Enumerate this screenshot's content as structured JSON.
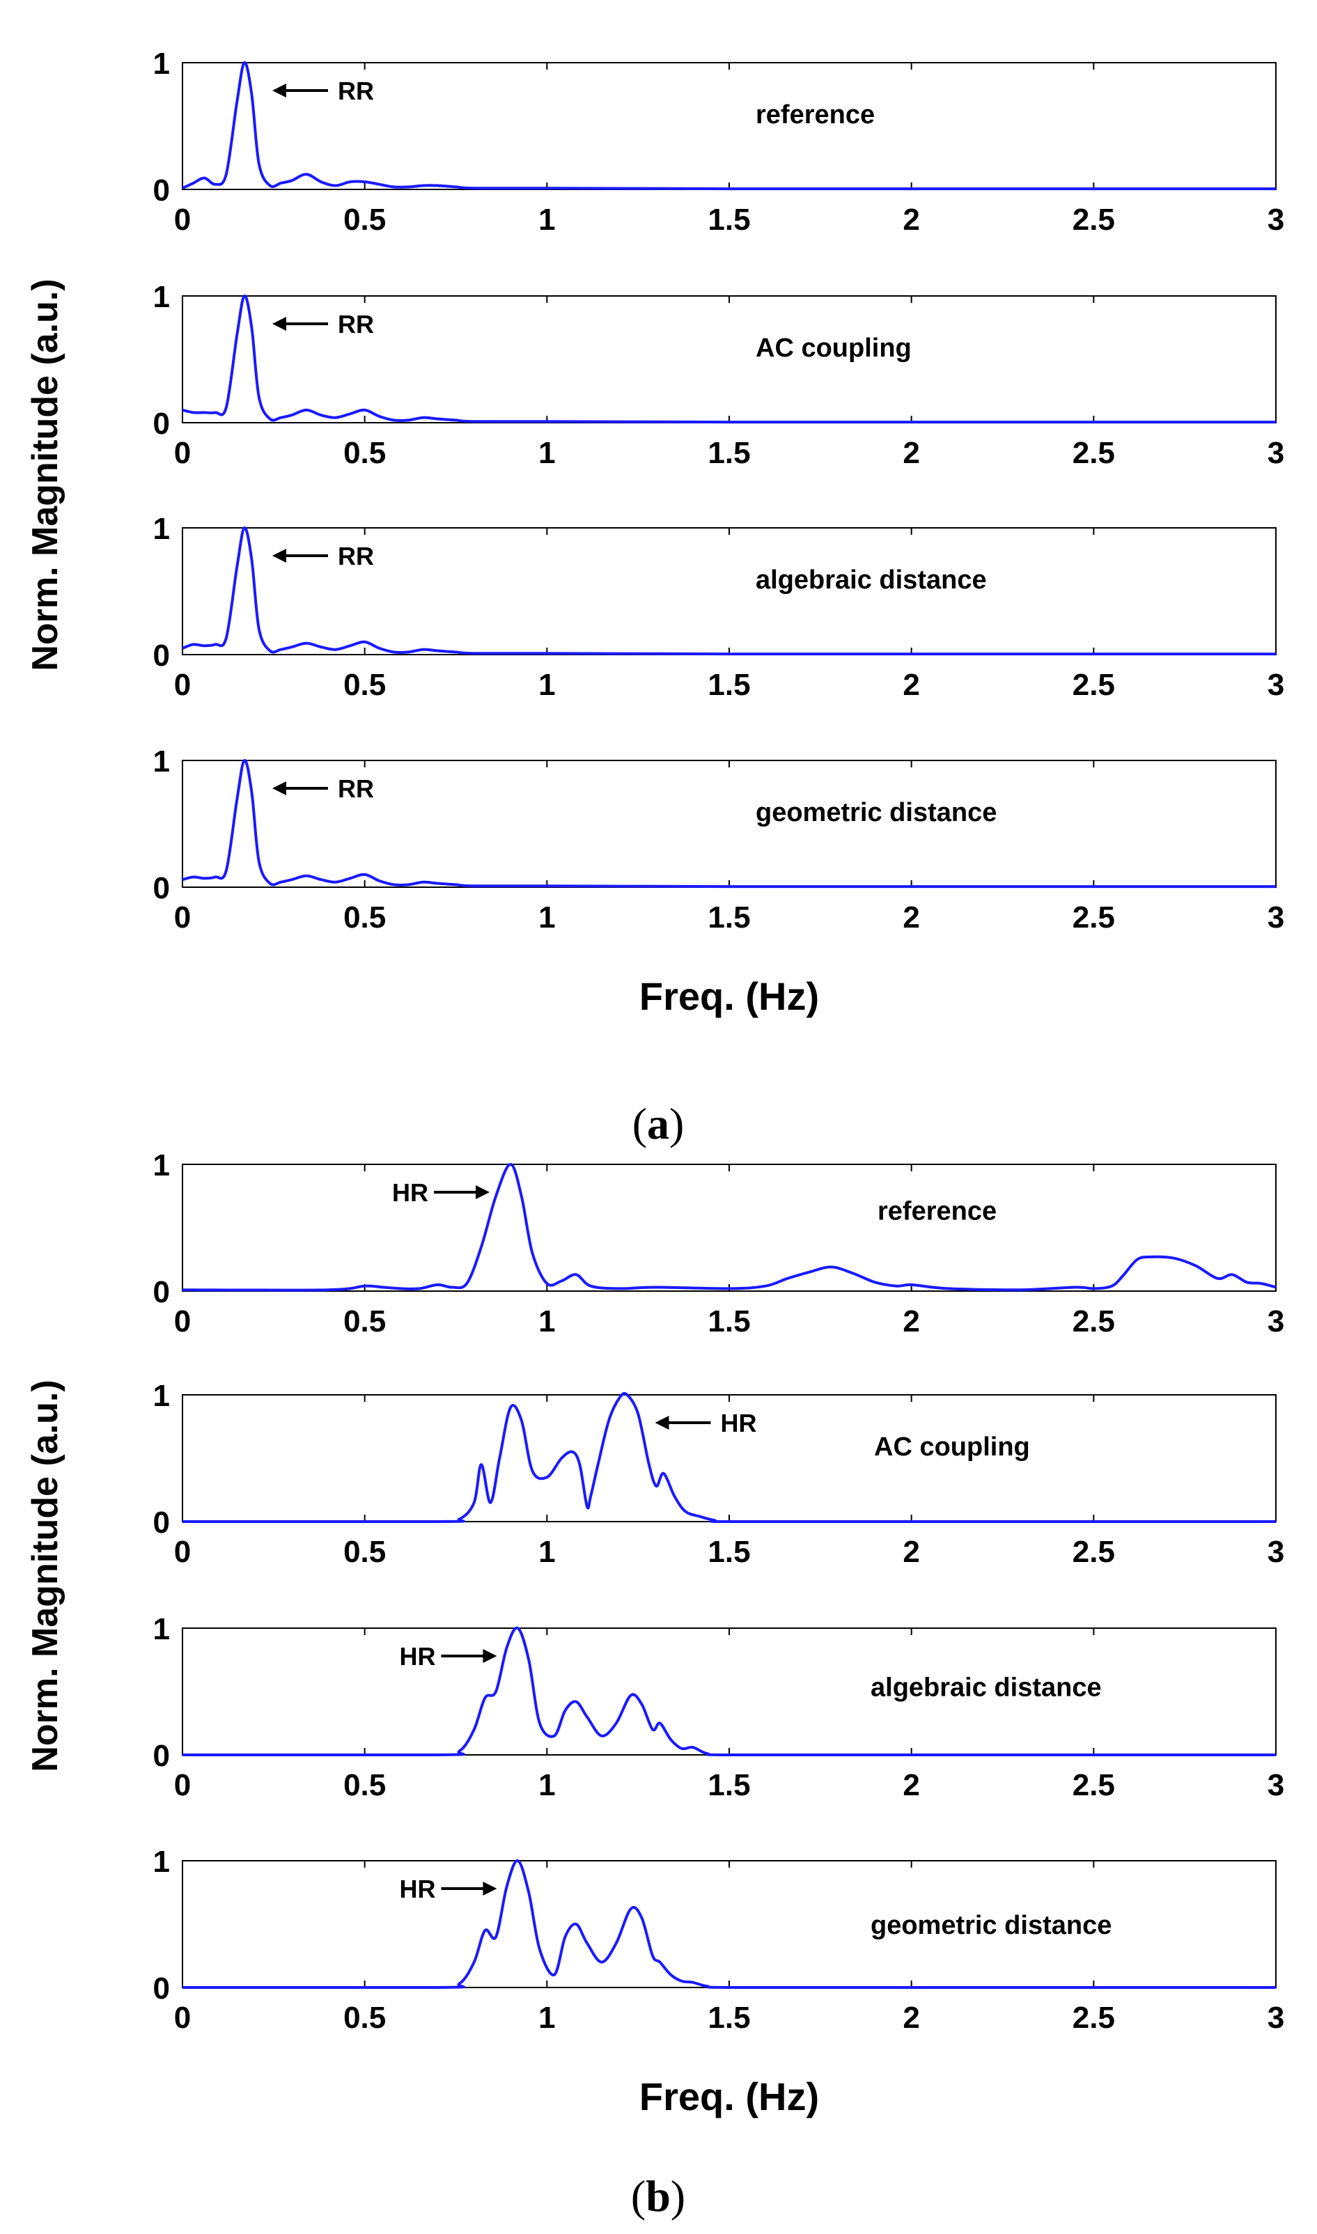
{
  "caption_a": {
    "open": "(",
    "letter": "a",
    "close": ")"
  },
  "caption_b": {
    "open": "(",
    "letter": "b",
    "close": ")"
  },
  "chart_data": [
    {
      "type": "line",
      "figure": "a",
      "ylabel": "Norm. Magnitude (a.u.)",
      "xlabel": "Freq. (Hz)",
      "xlim": [
        0,
        3
      ],
      "ylim": [
        0,
        1
      ],
      "xticks": [
        "0",
        "0.5",
        "1",
        "1.5",
        "2",
        "2.5",
        "3"
      ],
      "yticks": [
        "0",
        "1"
      ],
      "line_color": "#1a1aff",
      "panels": [
        {
          "label": "reference",
          "annotation": {
            "text": "RR",
            "direction": "left",
            "target_x": 0.17
          },
          "x": [
            0,
            0.03,
            0.06,
            0.09,
            0.12,
            0.15,
            0.17,
            0.19,
            0.21,
            0.24,
            0.27,
            0.3,
            0.34,
            0.38,
            0.42,
            0.46,
            0.5,
            0.54,
            0.58,
            0.62,
            0.66,
            0.7,
            0.75,
            0.8,
            1.0,
            1.5,
            2.0,
            2.5,
            3.0
          ],
          "y": [
            0.01,
            0.05,
            0.09,
            0.04,
            0.12,
            0.7,
            1.0,
            0.75,
            0.2,
            0.03,
            0.05,
            0.07,
            0.12,
            0.06,
            0.03,
            0.06,
            0.06,
            0.04,
            0.02,
            0.02,
            0.03,
            0.03,
            0.02,
            0.01,
            0.01,
            0.005,
            0.005,
            0.005,
            0.005
          ]
        },
        {
          "label": "AC coupling",
          "annotation": {
            "text": "RR",
            "direction": "left",
            "target_x": 0.17
          },
          "x": [
            0,
            0.03,
            0.06,
            0.09,
            0.12,
            0.15,
            0.17,
            0.19,
            0.21,
            0.24,
            0.27,
            0.3,
            0.34,
            0.38,
            0.42,
            0.46,
            0.5,
            0.54,
            0.58,
            0.62,
            0.66,
            0.7,
            0.75,
            0.8,
            1.0,
            1.5,
            2.0,
            2.5,
            3.0
          ],
          "y": [
            0.1,
            0.08,
            0.08,
            0.08,
            0.12,
            0.7,
            1.0,
            0.75,
            0.2,
            0.03,
            0.04,
            0.06,
            0.1,
            0.06,
            0.04,
            0.07,
            0.1,
            0.05,
            0.02,
            0.02,
            0.04,
            0.03,
            0.02,
            0.01,
            0.01,
            0.005,
            0.005,
            0.005,
            0.005
          ]
        },
        {
          "label": "algebraic distance",
          "annotation": {
            "text": "RR",
            "direction": "left",
            "target_x": 0.17
          },
          "x": [
            0,
            0.03,
            0.06,
            0.09,
            0.12,
            0.15,
            0.17,
            0.19,
            0.21,
            0.24,
            0.27,
            0.3,
            0.34,
            0.38,
            0.42,
            0.46,
            0.5,
            0.54,
            0.58,
            0.62,
            0.66,
            0.7,
            0.75,
            0.8,
            1.0,
            1.5,
            2.0,
            2.5,
            3.0
          ],
          "y": [
            0.05,
            0.08,
            0.07,
            0.08,
            0.13,
            0.7,
            1.0,
            0.75,
            0.2,
            0.03,
            0.04,
            0.06,
            0.09,
            0.06,
            0.04,
            0.07,
            0.1,
            0.05,
            0.02,
            0.02,
            0.04,
            0.03,
            0.02,
            0.01,
            0.01,
            0.005,
            0.005,
            0.005,
            0.005
          ]
        },
        {
          "label": "geometric distance",
          "annotation": {
            "text": "RR",
            "direction": "left",
            "target_x": 0.17
          },
          "x": [
            0,
            0.03,
            0.06,
            0.09,
            0.12,
            0.15,
            0.17,
            0.19,
            0.21,
            0.24,
            0.27,
            0.3,
            0.34,
            0.38,
            0.42,
            0.46,
            0.5,
            0.54,
            0.58,
            0.62,
            0.66,
            0.7,
            0.75,
            0.8,
            1.0,
            1.5,
            2.0,
            2.5,
            3.0
          ],
          "y": [
            0.06,
            0.08,
            0.07,
            0.08,
            0.13,
            0.7,
            1.0,
            0.75,
            0.2,
            0.03,
            0.04,
            0.06,
            0.09,
            0.06,
            0.04,
            0.07,
            0.1,
            0.05,
            0.02,
            0.02,
            0.04,
            0.03,
            0.02,
            0.01,
            0.01,
            0.005,
            0.005,
            0.005,
            0.005
          ]
        }
      ]
    },
    {
      "type": "line",
      "figure": "b",
      "ylabel": "Norm. Magnitude (a.u.)",
      "xlabel": "Freq. (Hz)",
      "xlim": [
        0,
        3
      ],
      "ylim": [
        0,
        1
      ],
      "xticks": [
        "0",
        "0.5",
        "1",
        "1.5",
        "2",
        "2.5",
        "3"
      ],
      "yticks": [
        "0",
        "1"
      ],
      "line_color": "#1a1aff",
      "panels": [
        {
          "label": "reference",
          "annotation": {
            "text": "HR",
            "direction": "right",
            "target_x": 0.9
          },
          "x": [
            0,
            0.4,
            0.5,
            0.55,
            0.6,
            0.65,
            0.7,
            0.74,
            0.78,
            0.82,
            0.86,
            0.9,
            0.93,
            0.96,
            1.0,
            1.04,
            1.08,
            1.12,
            1.2,
            1.3,
            1.5,
            1.6,
            1.66,
            1.72,
            1.78,
            1.84,
            1.9,
            1.96,
            2.0,
            2.1,
            2.3,
            2.45,
            2.5,
            2.55,
            2.58,
            2.62,
            2.66,
            2.72,
            2.78,
            2.84,
            2.88,
            2.92,
            2.96,
            3.0
          ],
          "y": [
            0.01,
            0.01,
            0.04,
            0.03,
            0.02,
            0.02,
            0.05,
            0.03,
            0.06,
            0.35,
            0.75,
            1.0,
            0.75,
            0.3,
            0.06,
            0.08,
            0.13,
            0.04,
            0.02,
            0.03,
            0.02,
            0.04,
            0.1,
            0.15,
            0.19,
            0.14,
            0.07,
            0.04,
            0.05,
            0.02,
            0.01,
            0.03,
            0.02,
            0.04,
            0.12,
            0.25,
            0.27,
            0.26,
            0.2,
            0.1,
            0.13,
            0.07,
            0.06,
            0.03
          ]
        },
        {
          "label": "AC coupling",
          "annotation": {
            "text": "HR",
            "direction": "left",
            "target_x": 1.22
          },
          "x": [
            0,
            0.7,
            0.76,
            0.8,
            0.82,
            0.845,
            0.87,
            0.9,
            0.93,
            0.96,
            1.0,
            1.04,
            1.07,
            1.09,
            1.11,
            1.12,
            1.14,
            1.17,
            1.2,
            1.22,
            1.25,
            1.28,
            1.3,
            1.32,
            1.35,
            1.38,
            1.42,
            1.46,
            1.5,
            2.0,
            3.0
          ],
          "y": [
            0.0,
            0.0,
            0.02,
            0.15,
            0.45,
            0.15,
            0.5,
            0.9,
            0.8,
            0.4,
            0.35,
            0.5,
            0.55,
            0.45,
            0.12,
            0.2,
            0.45,
            0.8,
            0.98,
            1.0,
            0.85,
            0.45,
            0.28,
            0.38,
            0.2,
            0.08,
            0.04,
            0.01,
            0.0,
            0.0,
            0.0
          ]
        },
        {
          "label": "algebraic distance",
          "annotation": {
            "text": "HR",
            "direction": "right",
            "target_x": 0.92
          },
          "x": [
            0,
            0.7,
            0.76,
            0.8,
            0.83,
            0.86,
            0.89,
            0.92,
            0.95,
            0.98,
            1.02,
            1.05,
            1.08,
            1.11,
            1.15,
            1.19,
            1.23,
            1.26,
            1.29,
            1.31,
            1.34,
            1.37,
            1.4,
            1.44,
            1.5,
            2.0,
            3.0
          ],
          "y": [
            0.0,
            0.0,
            0.03,
            0.2,
            0.45,
            0.5,
            0.85,
            1.0,
            0.75,
            0.25,
            0.15,
            0.35,
            0.42,
            0.3,
            0.15,
            0.25,
            0.47,
            0.4,
            0.2,
            0.25,
            0.12,
            0.05,
            0.06,
            0.01,
            0.0,
            0.0,
            0.0
          ]
        },
        {
          "label": "geometric distance",
          "annotation": {
            "text": "HR",
            "direction": "right",
            "target_x": 0.92
          },
          "x": [
            0,
            0.7,
            0.76,
            0.8,
            0.83,
            0.86,
            0.89,
            0.92,
            0.95,
            0.98,
            1.02,
            1.05,
            1.08,
            1.11,
            1.15,
            1.19,
            1.23,
            1.26,
            1.29,
            1.31,
            1.34,
            1.37,
            1.4,
            1.44,
            1.5,
            2.0,
            3.0
          ],
          "y": [
            0.0,
            0.0,
            0.03,
            0.2,
            0.45,
            0.4,
            0.8,
            1.0,
            0.75,
            0.3,
            0.1,
            0.4,
            0.5,
            0.35,
            0.2,
            0.35,
            0.62,
            0.55,
            0.25,
            0.2,
            0.1,
            0.05,
            0.04,
            0.01,
            0.0,
            0.0,
            0.0
          ]
        }
      ]
    }
  ]
}
